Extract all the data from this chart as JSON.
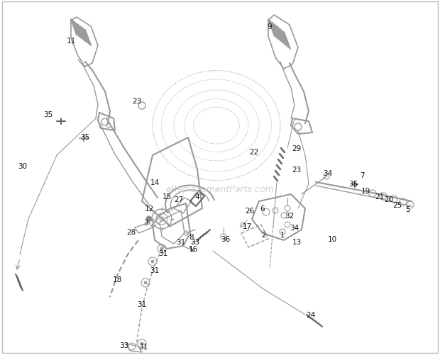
{
  "bg_color": "#ffffff",
  "diagram_color": "#999999",
  "line_color": "#888888",
  "label_color": "#111111",
  "watermark_color": "#cccccc",
  "fig_width": 6.2,
  "fig_height": 5.02,
  "dpi": 100,
  "border_color": "#bbbbbb"
}
